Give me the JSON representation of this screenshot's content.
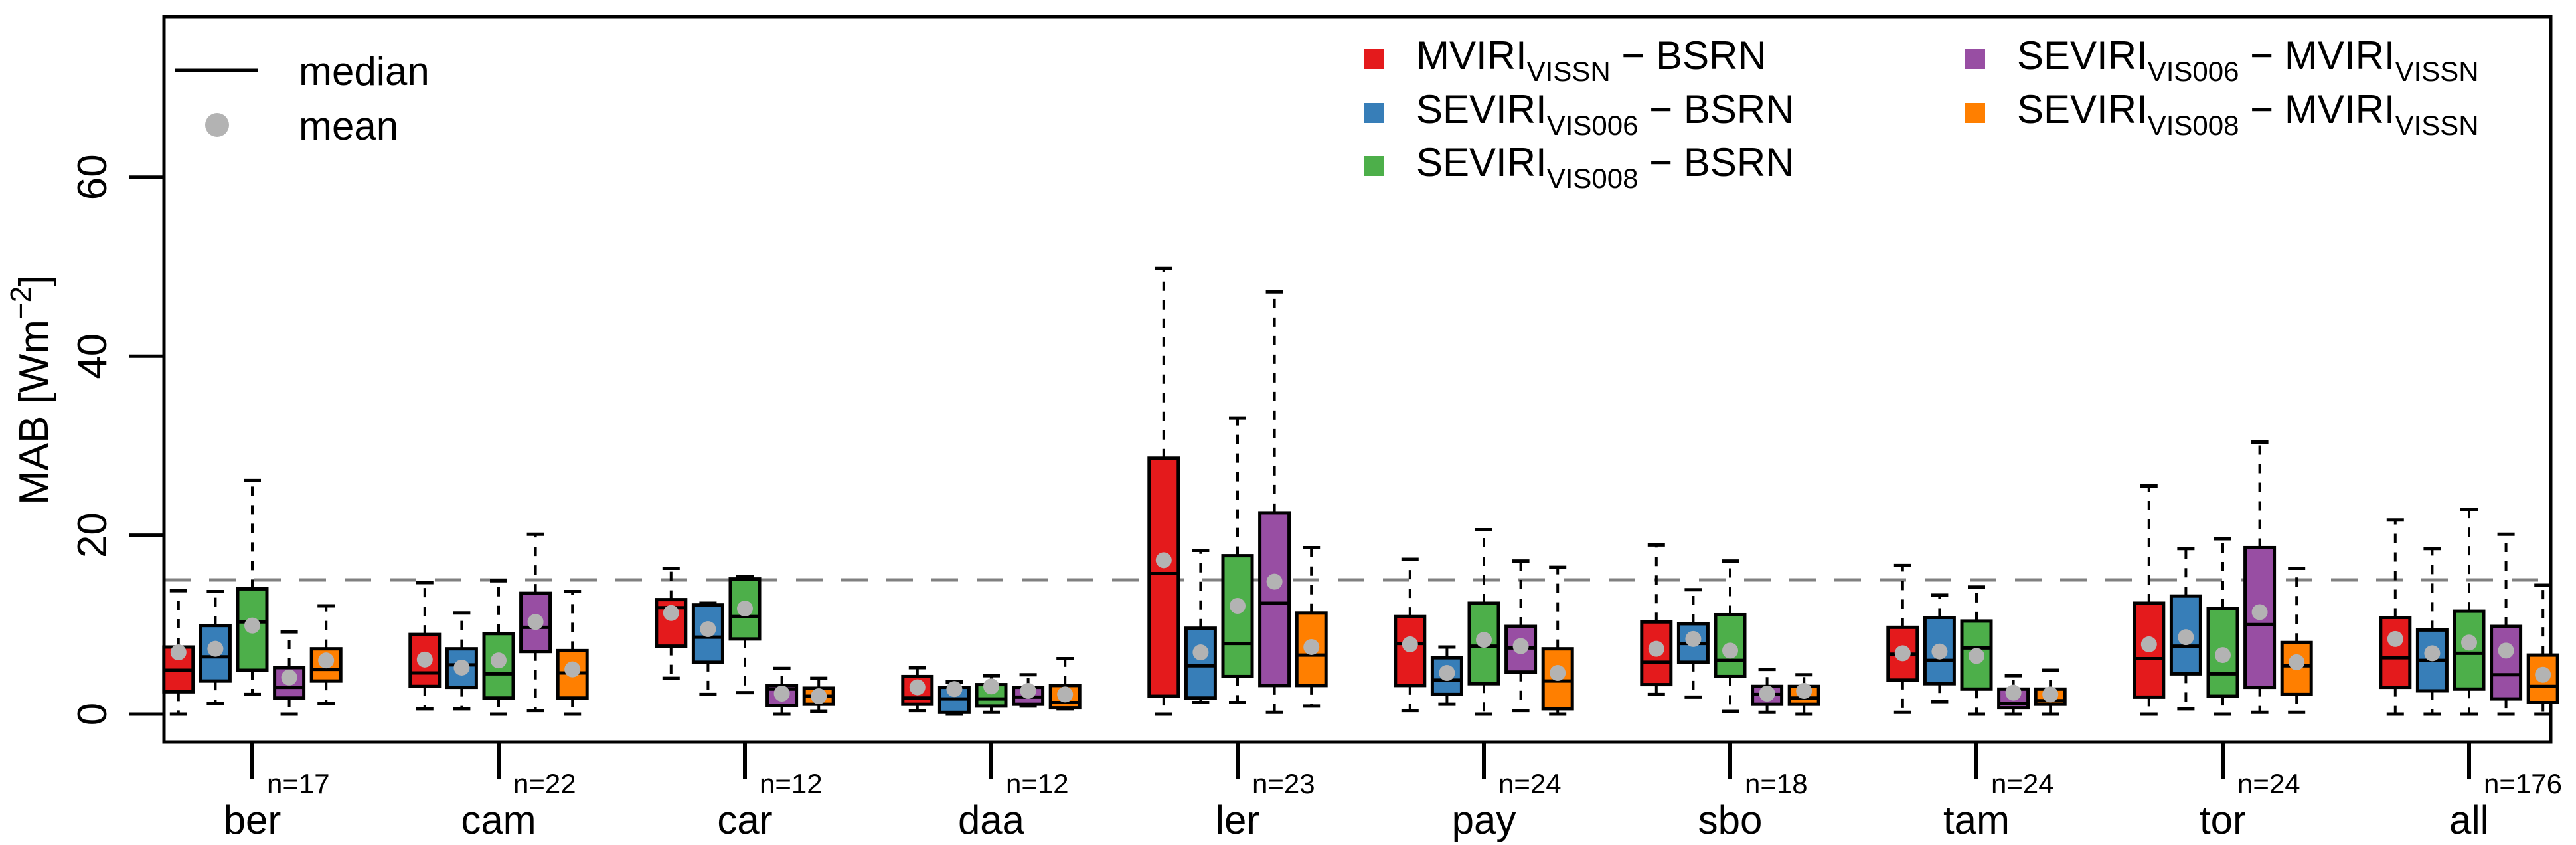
{
  "chart_data": {
    "type": "box",
    "title": "",
    "xlabel": "",
    "ylabel": "MAB [Wm^-2]",
    "ylabel_main": "MAB [Wm",
    "ylabel_sup": "−2",
    "ylabel_close": "]",
    "ylim": [
      -3.8,
      77
    ],
    "yticks": [
      0,
      20,
      40,
      60
    ],
    "ytick_labels": [
      "0",
      "20",
      "40",
      "60"
    ],
    "reference_line": 15,
    "legend_stats": [
      {
        "label": "median",
        "symbol": "line"
      },
      {
        "label": "mean",
        "symbol": "dot",
        "color": "#b3b3b3"
      }
    ],
    "series": [
      {
        "name": "MVIRI_VISSN − BSRN",
        "main": "MVIRI",
        "sub": "VISSN",
        "rest": " − BSRN",
        "color": "#e41a1c"
      },
      {
        "name": "SEVIRI_VIS006 − BSRN",
        "main": "SEVIRI",
        "sub": "VIS006",
        "rest": " − BSRN",
        "color": "#377eb8"
      },
      {
        "name": "SEVIRI_VIS008 − BSRN",
        "main": "SEVIRI",
        "sub": "VIS008",
        "rest": " − BSRN",
        "color": "#4daf4a"
      },
      {
        "name": "SEVIRI_VIS006 − MVIRI_VISSN",
        "main": "SEVIRI",
        "sub": "VIS006",
        "rest": " − MVIRI",
        "sub2": "VISSN",
        "color": "#984ea3"
      },
      {
        "name": "SEVIRI_VIS008 − MVIRI_VISSN",
        "main": "SEVIRI",
        "sub": "VIS008",
        "rest": " − MVIRI",
        "sub2": "VISSN",
        "color": "#ff7f00"
      }
    ],
    "stat_order": [
      "whisker_low",
      "q1",
      "median",
      "q3",
      "whisker_high",
      "mean"
    ],
    "groups": [
      {
        "label": "ber",
        "n": "n=17",
        "boxes": [
          [
            0,
            2.5,
            4.9,
            7.5,
            13.8,
            6.9
          ],
          [
            1.2,
            3.7,
            6.4,
            9.9,
            13.7,
            7.3
          ],
          [
            2.2,
            4.9,
            10.3,
            14.0,
            26.1,
            9.9
          ],
          [
            0,
            1.8,
            3.0,
            5.2,
            9.2,
            4.1
          ],
          [
            1.2,
            3.7,
            5.0,
            7.3,
            12.1,
            6.0
          ]
        ]
      },
      {
        "label": "cam",
        "n": "n=22",
        "boxes": [
          [
            0.6,
            3.1,
            4.6,
            8.9,
            14.7,
            6.1
          ],
          [
            0.6,
            3.0,
            5.5,
            7.3,
            11.3,
            5.2
          ],
          [
            0,
            1.8,
            4.5,
            9.0,
            14.9,
            6.0
          ],
          [
            0.4,
            7.0,
            9.7,
            13.5,
            20.1,
            10.3
          ],
          [
            0,
            1.8,
            4.6,
            7.1,
            13.7,
            5.0
          ]
        ]
      },
      {
        "label": "car",
        "n": "n=12",
        "boxes": [
          [
            4.0,
            7.6,
            11.9,
            12.8,
            16.3,
            11.3
          ],
          [
            2.2,
            5.8,
            8.6,
            12.2,
            12.4,
            9.5
          ],
          [
            2.4,
            8.4,
            10.9,
            15.1,
            15.4,
            11.8
          ],
          [
            0,
            1.0,
            2.8,
            3.2,
            5.1,
            2.3
          ],
          [
            0.3,
            1.1,
            2.0,
            2.9,
            4.0,
            2.0
          ]
        ]
      },
      {
        "label": "daa",
        "n": "n=12",
        "boxes": [
          [
            0.4,
            1.1,
            1.8,
            4.2,
            5.2,
            3.0
          ],
          [
            0,
            0.2,
            1.7,
            3.0,
            3.6,
            2.8
          ],
          [
            0.2,
            0.9,
            1.7,
            3.3,
            4.3,
            3.1
          ],
          [
            0.9,
            1.1,
            1.9,
            3.0,
            4.4,
            2.6
          ],
          [
            0.6,
            0.7,
            1.3,
            3.2,
            6.2,
            2.2
          ]
        ]
      },
      {
        "label": "ler",
        "n": "n=23",
        "boxes": [
          [
            0,
            2.0,
            15.7,
            28.6,
            49.8,
            17.2
          ],
          [
            1.3,
            1.8,
            5.4,
            9.6,
            18.3,
            6.9
          ],
          [
            1.3,
            4.2,
            7.9,
            17.7,
            33.1,
            12.1
          ],
          [
            0.2,
            3.2,
            12.4,
            22.5,
            47.2,
            14.8
          ],
          [
            0.9,
            3.2,
            6.6,
            11.3,
            18.6,
            7.5
          ]
        ]
      },
      {
        "label": "pay",
        "n": "n=24",
        "boxes": [
          [
            0.4,
            3.2,
            7.9,
            10.9,
            17.3,
            7.8
          ],
          [
            1.1,
            2.2,
            3.8,
            6.3,
            7.5,
            4.6
          ],
          [
            0,
            3.4,
            7.6,
            12.4,
            20.6,
            8.3
          ],
          [
            0.4,
            4.7,
            7.4,
            9.8,
            17.1,
            7.6
          ],
          [
            0,
            0.6,
            3.7,
            7.3,
            16.4,
            4.6
          ]
        ]
      },
      {
        "label": "sbo",
        "n": "n=18",
        "boxes": [
          [
            2.2,
            3.3,
            5.8,
            10.3,
            18.9,
            7.3
          ],
          [
            1.9,
            5.8,
            7.9,
            10.1,
            13.9,
            8.4
          ],
          [
            0.3,
            4.2,
            6.0,
            11.1,
            17.1,
            7.1
          ],
          [
            0.2,
            1.1,
            2.2,
            3.1,
            5.0,
            2.3
          ],
          [
            0,
            1.1,
            1.8,
            3.1,
            4.4,
            2.6
          ]
        ]
      },
      {
        "label": "tam",
        "n": "n=24",
        "boxes": [
          [
            0.2,
            3.8,
            6.7,
            9.7,
            16.6,
            6.8
          ],
          [
            1.4,
            3.4,
            6.0,
            10.8,
            13.3,
            7.0
          ],
          [
            0,
            2.8,
            7.4,
            10.4,
            14.2,
            6.5
          ],
          [
            0,
            0.7,
            1.2,
            2.8,
            4.3,
            2.4
          ],
          [
            0,
            1.1,
            1.5,
            2.8,
            4.9,
            2.2
          ]
        ]
      },
      {
        "label": "tor",
        "n": "n=24",
        "boxes": [
          [
            0,
            1.9,
            6.2,
            12.4,
            25.5,
            7.8
          ],
          [
            0.6,
            4.5,
            7.6,
            13.2,
            18.5,
            8.6
          ],
          [
            0,
            2.0,
            4.5,
            11.8,
            19.6,
            6.6
          ],
          [
            0.2,
            3.0,
            10.0,
            18.6,
            30.4,
            11.4
          ],
          [
            0.2,
            2.2,
            5.4,
            8.0,
            16.3,
            5.8
          ]
        ]
      },
      {
        "label": "all",
        "n": "n=176",
        "boxes": [
          [
            0,
            3.0,
            6.3,
            10.8,
            21.7,
            8.4
          ],
          [
            0,
            2.6,
            6.0,
            9.4,
            18.5,
            6.8
          ],
          [
            0,
            2.8,
            6.8,
            11.5,
            22.9,
            8.0
          ],
          [
            0,
            1.7,
            4.4,
            9.8,
            20.1,
            7.1
          ],
          [
            0,
            1.3,
            3.1,
            6.6,
            14.4,
            4.4
          ]
        ]
      }
    ]
  }
}
